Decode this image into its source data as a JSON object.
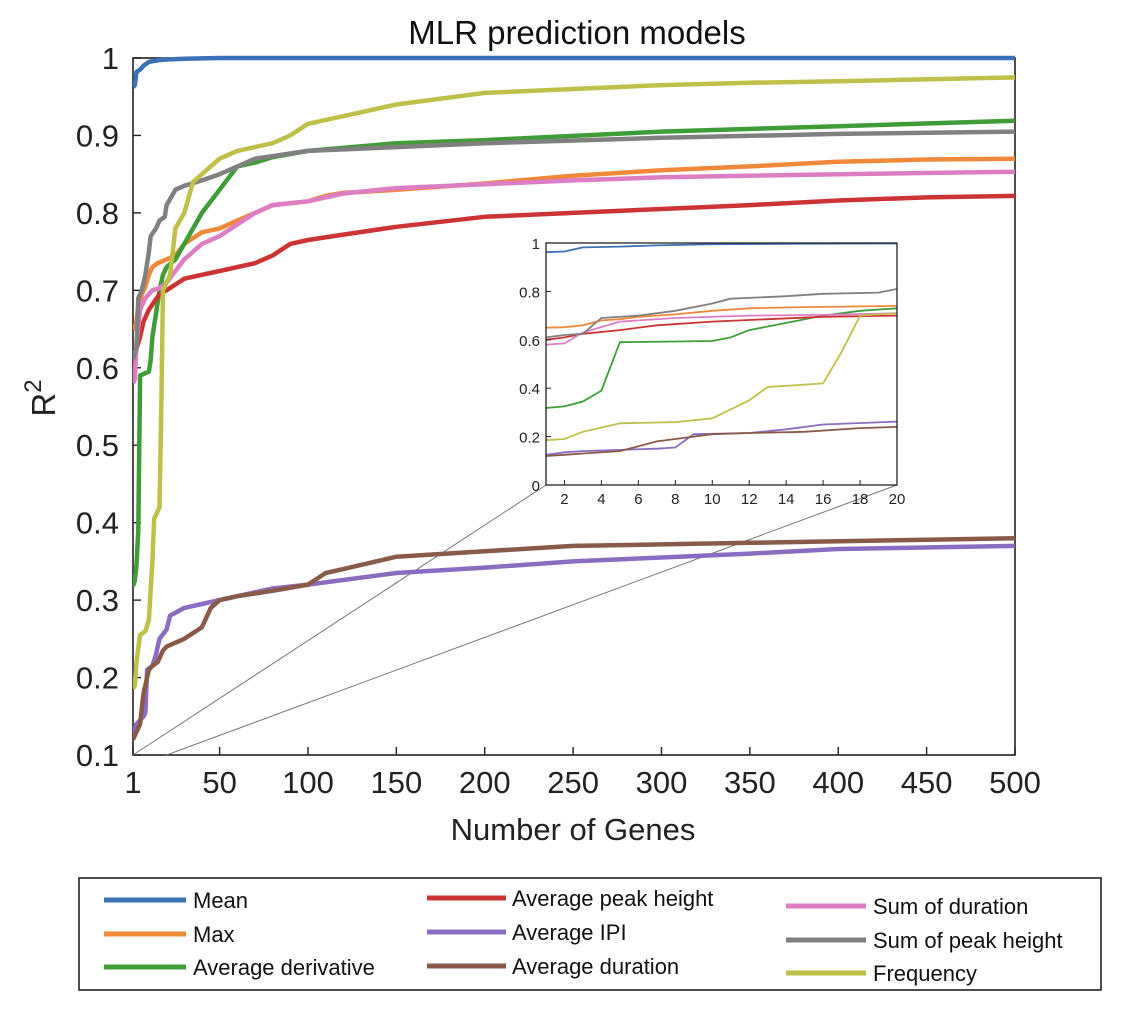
{
  "chart_data": {
    "type": "line",
    "title": "MLR prediction models",
    "xlabel": "Number of Genes",
    "ylabel": "R",
    "ylabel_superscript": "2",
    "xlim": [
      1,
      500
    ],
    "ylim": [
      0.1,
      1.0
    ],
    "xticks": [
      1,
      50,
      100,
      150,
      200,
      250,
      300,
      350,
      400,
      450,
      500
    ],
    "yticks": [
      0.1,
      0.2,
      0.3,
      0.4,
      0.5,
      0.6,
      0.7,
      0.8,
      0.9,
      1
    ],
    "grid": false,
    "legend_position": "bottom",
    "series": [
      {
        "name": "Mean",
        "color": "#3a72b5",
        "points": [
          [
            1,
            0.962
          ],
          [
            2,
            0.965
          ],
          [
            3,
            0.982
          ],
          [
            5,
            0.985
          ],
          [
            7,
            0.99
          ],
          [
            10,
            0.995
          ],
          [
            15,
            0.997
          ],
          [
            20,
            0.998
          ],
          [
            30,
            0.999
          ],
          [
            50,
            1.0
          ],
          [
            100,
            1.0
          ],
          [
            500,
            1.0
          ]
        ]
      },
      {
        "name": "Max",
        "color": "#f0883a",
        "points": [
          [
            1,
            0.65
          ],
          [
            2,
            0.652
          ],
          [
            3,
            0.66
          ],
          [
            4,
            0.68
          ],
          [
            5,
            0.685
          ],
          [
            6,
            0.695
          ],
          [
            8,
            0.705
          ],
          [
            10,
            0.72
          ],
          [
            12,
            0.73
          ],
          [
            15,
            0.735
          ],
          [
            20,
            0.74
          ],
          [
            25,
            0.745
          ],
          [
            30,
            0.76
          ],
          [
            40,
            0.775
          ],
          [
            50,
            0.78
          ],
          [
            60,
            0.79
          ],
          [
            70,
            0.8
          ],
          [
            80,
            0.81
          ],
          [
            100,
            0.815
          ],
          [
            110,
            0.822
          ],
          [
            120,
            0.826
          ],
          [
            130,
            0.827
          ],
          [
            150,
            0.83
          ],
          [
            200,
            0.838
          ],
          [
            250,
            0.848
          ],
          [
            300,
            0.855
          ],
          [
            350,
            0.86
          ],
          [
            400,
            0.866
          ],
          [
            450,
            0.869
          ],
          [
            500,
            0.87
          ]
        ]
      },
      {
        "name": "Average derivative",
        "color": "#3f9d38",
        "points": [
          [
            1,
            0.318
          ],
          [
            2,
            0.325
          ],
          [
            3,
            0.345
          ],
          [
            4,
            0.39
          ],
          [
            5,
            0.59
          ],
          [
            8,
            0.593
          ],
          [
            10,
            0.595
          ],
          [
            11,
            0.61
          ],
          [
            12,
            0.64
          ],
          [
            14,
            0.67
          ],
          [
            16,
            0.7
          ],
          [
            18,
            0.72
          ],
          [
            20,
            0.73
          ],
          [
            25,
            0.74
          ],
          [
            30,
            0.76
          ],
          [
            40,
            0.8
          ],
          [
            50,
            0.83
          ],
          [
            60,
            0.86
          ],
          [
            70,
            0.865
          ],
          [
            80,
            0.872
          ],
          [
            100,
            0.88
          ],
          [
            150,
            0.89
          ],
          [
            200,
            0.894
          ],
          [
            300,
            0.905
          ],
          [
            400,
            0.912
          ],
          [
            500,
            0.919
          ]
        ]
      },
      {
        "name": "Average peak height",
        "color": "#cc3434",
        "points": [
          [
            1,
            0.6
          ],
          [
            2,
            0.61
          ],
          [
            3,
            0.625
          ],
          [
            5,
            0.64
          ],
          [
            7,
            0.66
          ],
          [
            10,
            0.675
          ],
          [
            13,
            0.685
          ],
          [
            16,
            0.695
          ],
          [
            20,
            0.7
          ],
          [
            30,
            0.715
          ],
          [
            40,
            0.72
          ],
          [
            50,
            0.725
          ],
          [
            70,
            0.735
          ],
          [
            80,
            0.745
          ],
          [
            90,
            0.76
          ],
          [
            100,
            0.765
          ],
          [
            120,
            0.772
          ],
          [
            150,
            0.782
          ],
          [
            200,
            0.795
          ],
          [
            250,
            0.8
          ],
          [
            300,
            0.805
          ],
          [
            350,
            0.81
          ],
          [
            400,
            0.816
          ],
          [
            450,
            0.82
          ],
          [
            500,
            0.822
          ]
        ]
      },
      {
        "name": "Average IPI",
        "color": "#8a6dc0",
        "points": [
          [
            1,
            0.125
          ],
          [
            2,
            0.135
          ],
          [
            3,
            0.14
          ],
          [
            5,
            0.145
          ],
          [
            7,
            0.15
          ],
          [
            8,
            0.155
          ],
          [
            9,
            0.21
          ],
          [
            12,
            0.215
          ],
          [
            14,
            0.23
          ],
          [
            16,
            0.25
          ],
          [
            20,
            0.262
          ],
          [
            22,
            0.28
          ],
          [
            30,
            0.29
          ],
          [
            40,
            0.295
          ],
          [
            60,
            0.305
          ],
          [
            80,
            0.315
          ],
          [
            100,
            0.32
          ],
          [
            150,
            0.335
          ],
          [
            200,
            0.342
          ],
          [
            250,
            0.35
          ],
          [
            300,
            0.355
          ],
          [
            350,
            0.36
          ],
          [
            400,
            0.366
          ],
          [
            500,
            0.37
          ]
        ]
      },
      {
        "name": "Average duration",
        "color": "#8a5a48",
        "points": [
          [
            1,
            0.12
          ],
          [
            2,
            0.125
          ],
          [
            3,
            0.13
          ],
          [
            5,
            0.14
          ],
          [
            6,
            0.16
          ],
          [
            7,
            0.18
          ],
          [
            9,
            0.2
          ],
          [
            10,
            0.21
          ],
          [
            12,
            0.215
          ],
          [
            15,
            0.22
          ],
          [
            18,
            0.235
          ],
          [
            20,
            0.24
          ],
          [
            30,
            0.25
          ],
          [
            40,
            0.265
          ],
          [
            45,
            0.29
          ],
          [
            50,
            0.3
          ],
          [
            60,
            0.305
          ],
          [
            80,
            0.312
          ],
          [
            100,
            0.32
          ],
          [
            110,
            0.335
          ],
          [
            120,
            0.34
          ],
          [
            150,
            0.356
          ],
          [
            200,
            0.363
          ],
          [
            250,
            0.37
          ],
          [
            300,
            0.372
          ],
          [
            350,
            0.374
          ],
          [
            400,
            0.376
          ],
          [
            500,
            0.38
          ]
        ]
      },
      {
        "name": "Sum of duration",
        "color": "#dd7ec4",
        "points": [
          [
            1,
            0.58
          ],
          [
            2,
            0.585
          ],
          [
            3,
            0.63
          ],
          [
            5,
            0.675
          ],
          [
            8,
            0.69
          ],
          [
            12,
            0.7
          ],
          [
            16,
            0.703
          ],
          [
            20,
            0.71
          ],
          [
            30,
            0.74
          ],
          [
            40,
            0.76
          ],
          [
            50,
            0.77
          ],
          [
            60,
            0.785
          ],
          [
            70,
            0.8
          ],
          [
            80,
            0.81
          ],
          [
            100,
            0.815
          ],
          [
            120,
            0.825
          ],
          [
            150,
            0.832
          ],
          [
            200,
            0.837
          ],
          [
            250,
            0.842
          ],
          [
            300,
            0.846
          ],
          [
            400,
            0.85
          ],
          [
            500,
            0.853
          ]
        ]
      },
      {
        "name": "Sum of peak height",
        "color": "#808080",
        "points": [
          [
            1,
            0.61
          ],
          [
            2,
            0.62
          ],
          [
            3,
            0.625
          ],
          [
            4,
            0.69
          ],
          [
            6,
            0.7
          ],
          [
            8,
            0.72
          ],
          [
            10,
            0.75
          ],
          [
            11,
            0.77
          ],
          [
            14,
            0.78
          ],
          [
            16,
            0.79
          ],
          [
            19,
            0.795
          ],
          [
            20,
            0.81
          ],
          [
            25,
            0.83
          ],
          [
            30,
            0.835
          ],
          [
            40,
            0.842
          ],
          [
            50,
            0.85
          ],
          [
            70,
            0.87
          ],
          [
            100,
            0.88
          ],
          [
            150,
            0.885
          ],
          [
            200,
            0.89
          ],
          [
            300,
            0.897
          ],
          [
            400,
            0.902
          ],
          [
            500,
            0.905
          ]
        ]
      },
      {
        "name": "Frequency",
        "color": "#bfc04a",
        "points": [
          [
            1,
            0.185
          ],
          [
            2,
            0.19
          ],
          [
            3,
            0.22
          ],
          [
            5,
            0.255
          ],
          [
            8,
            0.26
          ],
          [
            10,
            0.275
          ],
          [
            12,
            0.35
          ],
          [
            13,
            0.405
          ],
          [
            15,
            0.415
          ],
          [
            16,
            0.42
          ],
          [
            17,
            0.55
          ],
          [
            18,
            0.7
          ],
          [
            20,
            0.71
          ],
          [
            22,
            0.72
          ],
          [
            25,
            0.78
          ],
          [
            30,
            0.8
          ],
          [
            35,
            0.84
          ],
          [
            40,
            0.85
          ],
          [
            50,
            0.87
          ],
          [
            60,
            0.88
          ],
          [
            80,
            0.89
          ],
          [
            90,
            0.9
          ],
          [
            100,
            0.915
          ],
          [
            150,
            0.94
          ],
          [
            200,
            0.955
          ],
          [
            250,
            0.96
          ],
          [
            300,
            0.965
          ],
          [
            350,
            0.968
          ],
          [
            400,
            0.97
          ],
          [
            500,
            0.975
          ]
        ]
      }
    ],
    "inset": {
      "xlim": [
        1,
        20
      ],
      "ylim": [
        0,
        1
      ],
      "xticks": [
        2,
        4,
        6,
        8,
        10,
        12,
        14,
        16,
        18,
        20
      ],
      "yticks": [
        0,
        0.2,
        0.4,
        0.6,
        0.8,
        1
      ],
      "ytick_labels": [
        "0",
        "0.2",
        "0.4",
        "0.6",
        "0.8",
        "1"
      ]
    }
  }
}
